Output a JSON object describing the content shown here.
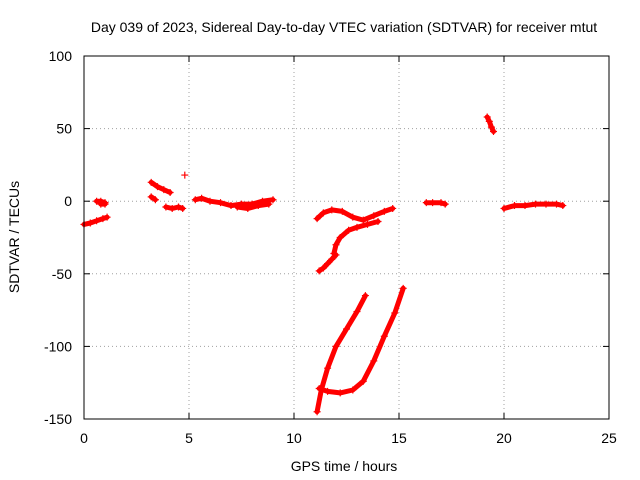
{
  "chart_data": {
    "type": "scatter",
    "title": "Day 039 of 2023, Sidereal Day-to-day VTEC variation (SDTVAR) for receiver mtut",
    "xlabel": "GPS time / hours",
    "ylabel": "SDTVAR / TECUs",
    "xlim": [
      0,
      25
    ],
    "ylim": [
      -150,
      100
    ],
    "xticks": [
      0,
      5,
      10,
      15,
      20,
      25
    ],
    "yticks": [
      -150,
      -100,
      -50,
      0,
      50,
      100
    ],
    "grid": true,
    "marker": "plus",
    "series": [
      {
        "name": "SDTVAR",
        "color": "#ff0000",
        "segments": [
          [
            [
              0.0,
              -16
            ],
            [
              0.3,
              -15
            ],
            [
              0.6,
              -13.5
            ],
            [
              0.9,
              -12
            ],
            [
              1.1,
              -11
            ]
          ],
          [
            [
              0.6,
              0
            ],
            [
              0.8,
              0
            ],
            [
              1.0,
              -1
            ]
          ],
          [
            [
              0.8,
              -2
            ],
            [
              1.0,
              -2
            ]
          ],
          [
            [
              3.2,
              13
            ],
            [
              3.5,
              10
            ],
            [
              3.8,
              8
            ],
            [
              4.1,
              6
            ]
          ],
          [
            [
              3.2,
              3
            ],
            [
              3.4,
              1
            ]
          ],
          [
            [
              3.9,
              -4
            ],
            [
              4.2,
              -5
            ],
            [
              4.5,
              -4
            ],
            [
              4.7,
              -5
            ]
          ],
          [
            [
              4.8,
              18
            ]
          ],
          [
            [
              5.3,
              1
            ],
            [
              5.6,
              2
            ],
            [
              6.0,
              0
            ],
            [
              6.5,
              -1
            ],
            [
              7.0,
              -3
            ],
            [
              7.5,
              -2
            ],
            [
              8.0,
              -2
            ],
            [
              8.5,
              0
            ],
            [
              9.0,
              1
            ]
          ],
          [
            [
              7.3,
              -4
            ],
            [
              7.8,
              -5
            ],
            [
              8.3,
              -3
            ],
            [
              8.8,
              -2
            ]
          ],
          [
            [
              11.1,
              -12
            ],
            [
              11.4,
              -8
            ],
            [
              11.8,
              -6
            ],
            [
              12.3,
              -7
            ],
            [
              12.8,
              -11
            ],
            [
              13.3,
              -13
            ],
            [
              13.8,
              -10
            ],
            [
              14.3,
              -7
            ],
            [
              14.7,
              -5
            ]
          ],
          [
            [
              11.9,
              -36
            ],
            [
              12.0,
              -30
            ],
            [
              12.2,
              -25
            ],
            [
              12.6,
              -20
            ],
            [
              13.0,
              -18
            ],
            [
              13.5,
              -16
            ],
            [
              14.0,
              -14
            ]
          ],
          [
            [
              11.2,
              -48
            ],
            [
              11.4,
              -46
            ],
            [
              11.6,
              -43
            ],
            [
              11.8,
              -40
            ],
            [
              12.0,
              -37
            ]
          ],
          [
            [
              11.1,
              -145
            ],
            [
              11.3,
              -130
            ],
            [
              11.6,
              -115
            ],
            [
              12.0,
              -100
            ],
            [
              12.5,
              -88
            ],
            [
              13.0,
              -76
            ],
            [
              13.4,
              -65
            ]
          ],
          [
            [
              11.2,
              -129
            ],
            [
              11.6,
              -131
            ],
            [
              12.2,
              -132
            ],
            [
              12.8,
              -130
            ],
            [
              13.3,
              -124
            ],
            [
              13.8,
              -110
            ],
            [
              14.3,
              -93
            ],
            [
              14.8,
              -77
            ],
            [
              15.2,
              -60
            ]
          ],
          [
            [
              16.3,
              -1
            ],
            [
              16.6,
              -1
            ],
            [
              17.0,
              -1
            ],
            [
              17.2,
              -2
            ]
          ],
          [
            [
              19.2,
              58
            ],
            [
              19.3,
              55
            ],
            [
              19.4,
              51
            ],
            [
              19.5,
              48
            ]
          ],
          [
            [
              20.0,
              -5
            ],
            [
              20.5,
              -3
            ],
            [
              21.0,
              -3
            ],
            [
              21.5,
              -2
            ],
            [
              22.0,
              -2
            ],
            [
              22.5,
              -2
            ],
            [
              22.8,
              -3
            ]
          ]
        ]
      }
    ]
  }
}
